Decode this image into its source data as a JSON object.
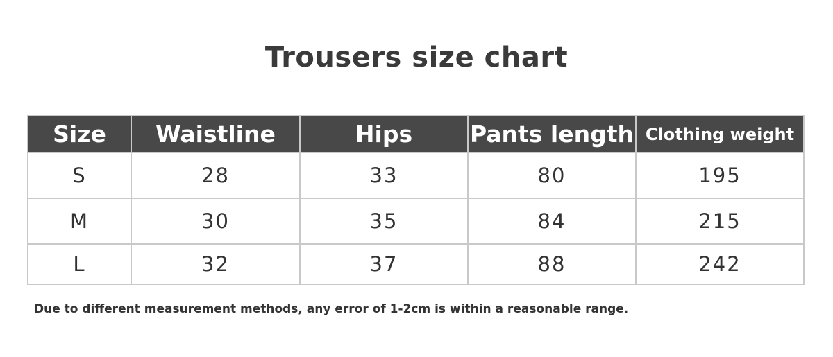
{
  "title": "Trousers size chart",
  "table": {
    "headers": [
      "Size",
      "Waistline",
      "Hips",
      "Pants length",
      "Clothing weight"
    ],
    "rows": [
      [
        "S",
        "28",
        "33",
        "80",
        "195"
      ],
      [
        "M",
        "30",
        "35",
        "84",
        "215"
      ],
      [
        "L",
        "32",
        "37",
        "88",
        "242"
      ]
    ]
  },
  "note": "Due to different measurement methods, any error of 1-2cm is within a reasonable range.",
  "colors": {
    "header_bg": "#484848",
    "border": "#c9c9c9"
  }
}
